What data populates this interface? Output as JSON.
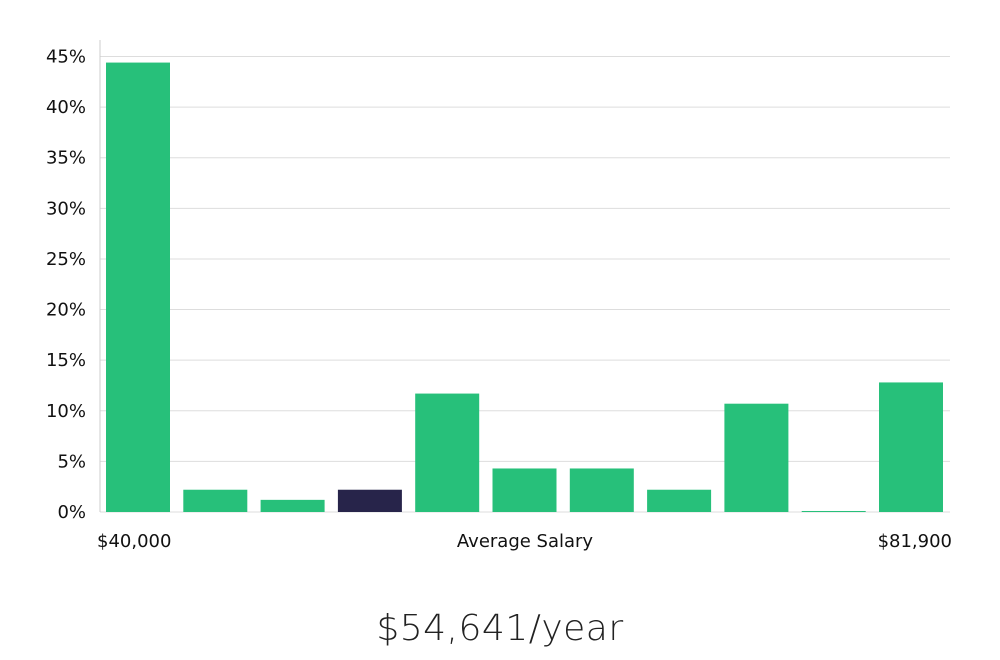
{
  "chart_data": {
    "type": "bar",
    "title": "",
    "xlabel": "Average Salary",
    "ylabel": "",
    "x_min_label": "$40,000",
    "x_max_label": "$81,900",
    "ylim": [
      0,
      45
    ],
    "yticks": [
      0,
      5,
      10,
      15,
      20,
      25,
      30,
      35,
      40,
      45
    ],
    "ytick_labels": [
      "0%",
      "5%",
      "10%",
      "15%",
      "20%",
      "25%",
      "30%",
      "35%",
      "40%",
      "45%"
    ],
    "grid": true,
    "values": [
      44.4,
      2.2,
      1.2,
      2.2,
      11.7,
      4.3,
      4.3,
      2.2,
      10.7,
      0.1,
      12.8
    ],
    "highlight_index": 3,
    "colors": {
      "bar": "#27c07a",
      "highlight": "#27244a",
      "grid": "#dddddd",
      "axis": "#cccccc"
    }
  },
  "summary": {
    "value": "$54,641/year"
  }
}
